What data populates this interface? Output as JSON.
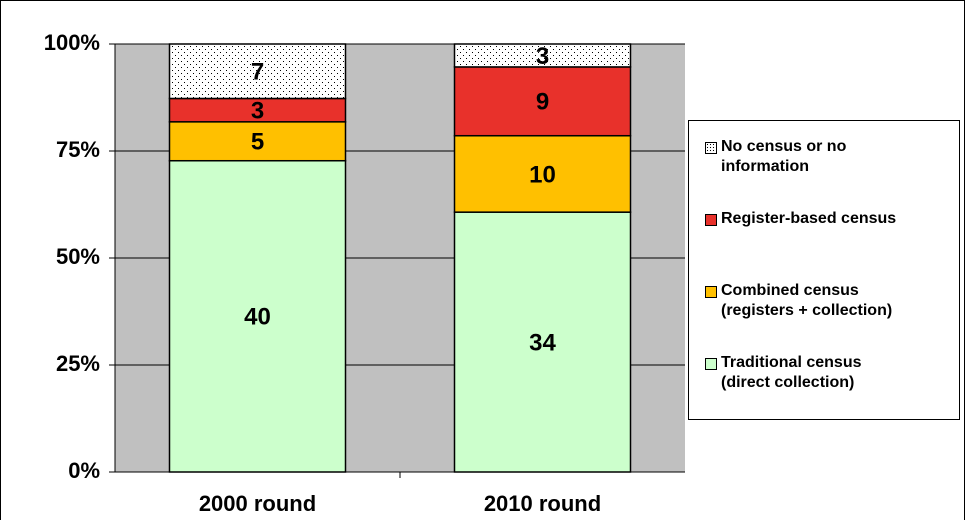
{
  "chart_data": {
    "type": "percent_stacked_bar",
    "categories": [
      "2000 round",
      "2010 round"
    ],
    "series": [
      {
        "name": "Traditional census\n(direct collection)",
        "color": "#ccffcc",
        "values": [
          40,
          34
        ]
      },
      {
        "name": "Combined census\n(registers + collection)",
        "color": "#ffc000",
        "values": [
          5,
          10
        ]
      },
      {
        "name": "Register-based census",
        "color": "#e8312b",
        "values": [
          3,
          9
        ]
      },
      {
        "name": "No census or no\ninformation",
        "color": "dots",
        "values": [
          7,
          3
        ]
      }
    ],
    "ylim": [
      0,
      100
    ],
    "yticks": [
      {
        "value": 0,
        "label": "0%"
      },
      {
        "value": 25,
        "label": "25%"
      },
      {
        "value": 50,
        "label": "50%"
      },
      {
        "value": 75,
        "label": "75%"
      },
      {
        "value": 100,
        "label": "100%"
      }
    ],
    "grid": true,
    "legend": "right"
  }
}
